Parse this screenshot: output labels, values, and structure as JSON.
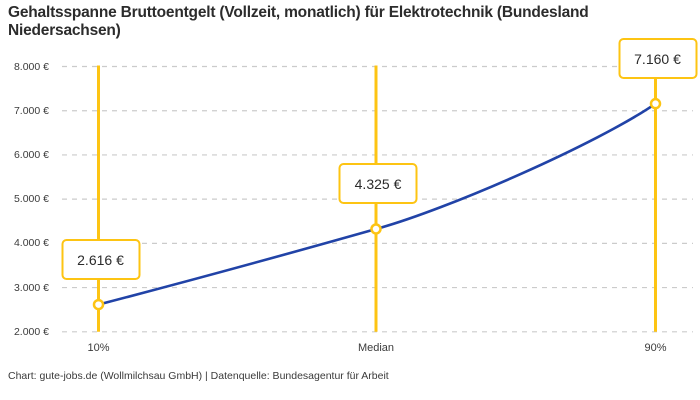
{
  "title": "Gehaltsspanne Bruttoentgelt (Vollzeit, monatlich) für Elektrotechnik (Bundesland Niedersachsen)",
  "footer": "Chart: gute-jobs.de (Wollmilchsau GmbH) | Datenquelle: Bundesagentur für Arbeit",
  "colors": {
    "accent_yellow": "#fdc413",
    "line_blue": "#2143a7",
    "grid": "#cbcbcb",
    "text_dark": "#2c2c2c",
    "text_axis": "#3b3b3b",
    "marker_fill": "#ffffff"
  },
  "chart_data": {
    "type": "line",
    "title": "Gehaltsspanne Bruttoentgelt (Vollzeit, monatlich) für Elektrotechnik (Bundesland Niedersachsen)",
    "categories": [
      "10%",
      "Median",
      "90%"
    ],
    "values": [
      2616,
      4325,
      7160
    ],
    "value_labels": [
      "2.616 €",
      "4.325 €",
      "7.160 €"
    ],
    "y_ticks": [
      8000,
      7000,
      6000,
      5000,
      4000,
      3000,
      2000
    ],
    "y_tick_labels": [
      "8.000 €",
      "7.000 €",
      "6.000 €",
      "5.000 €",
      "4.000 €",
      "3.000 €",
      "2.000 €"
    ],
    "ylim": [
      2000,
      8000
    ],
    "xlabel": "",
    "ylabel": "",
    "grid": "horizontal-dashed",
    "legend": "none",
    "annotations": "each data point marked by a yellow vertical guide line and a yellow-bordered value box"
  }
}
